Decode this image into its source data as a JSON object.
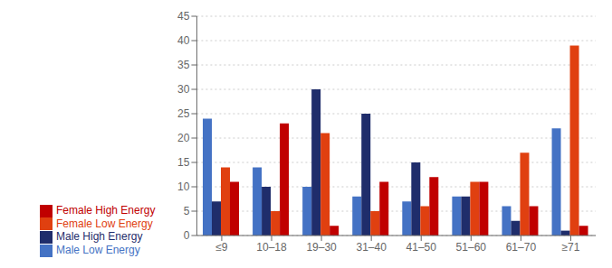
{
  "chart_data": {
    "type": "bar",
    "categories": [
      "≤9",
      "10–18",
      "19–30",
      "31–40",
      "41–50",
      "51–60",
      "61–70",
      "≥71"
    ],
    "series": [
      {
        "name": "Male Low Energy",
        "color": "#4472C4",
        "values": [
          24,
          14,
          10,
          8,
          7,
          8,
          6,
          22
        ]
      },
      {
        "name": "Male High Energy",
        "color": "#1F2D6B",
        "values": [
          7,
          10,
          30,
          25,
          15,
          8,
          3,
          1
        ]
      },
      {
        "name": "Female Low Energy",
        "color": "#E04010",
        "values": [
          14,
          5,
          21,
          5,
          6,
          11,
          17,
          39
        ]
      },
      {
        "name": "Female High Energy",
        "color": "#C00000",
        "values": [
          11,
          23,
          2,
          11,
          12,
          11,
          6,
          2
        ]
      }
    ],
    "ylim": [
      0,
      45
    ],
    "yticks": [
      0,
      5,
      10,
      15,
      20,
      25,
      30,
      35,
      40,
      45
    ],
    "grid": true,
    "legend": "lower left"
  }
}
